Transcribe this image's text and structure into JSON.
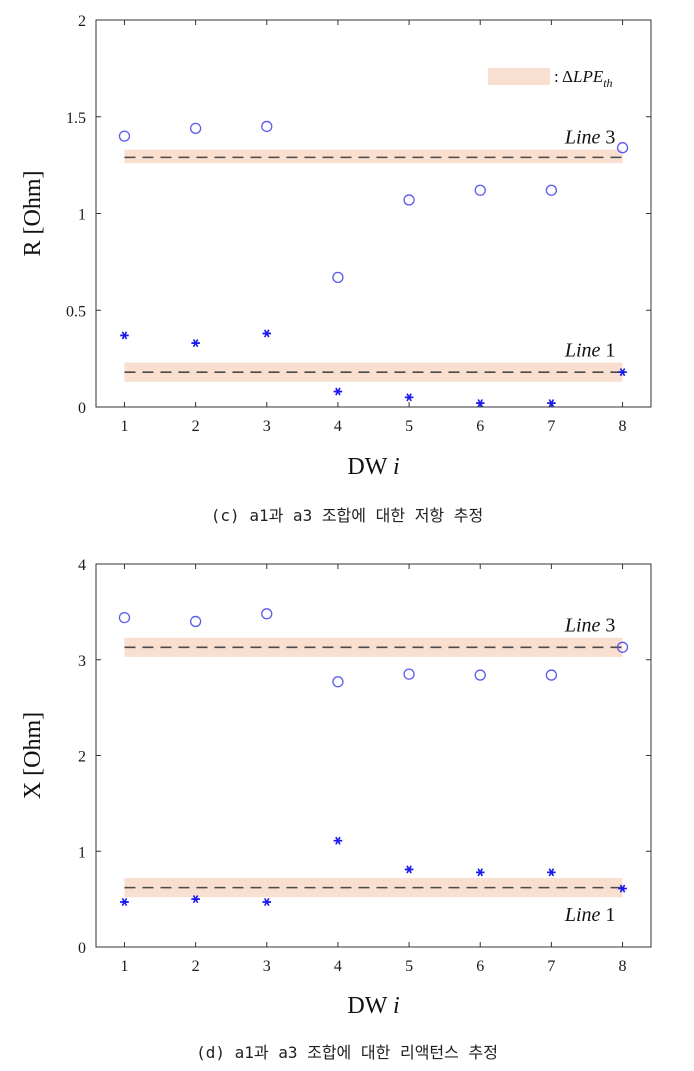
{
  "chart_data": [
    {
      "type": "scatter",
      "caption": "(c) a1과 a3 조합에 대한 저항 추정",
      "xlabel": "DW",
      "xlabel_var": "i",
      "ylabel": "R [Ohm]",
      "xlim": [
        0.6,
        8.4
      ],
      "ylim": [
        0,
        2
      ],
      "x_ticks": [
        "1",
        "2",
        "3",
        "4",
        "5",
        "6",
        "7",
        "8"
      ],
      "y_ticks": [
        "0",
        "0.5",
        "1",
        "1.5",
        "2"
      ],
      "legend": {
        "symbol": "Δ",
        "label": "LPE",
        "subscript": "th",
        "prefix": ":"
      },
      "series": [
        {
          "marker": "circle",
          "color": "#5a5af0",
          "x": [
            1,
            2,
            3,
            4,
            5,
            6,
            7,
            8
          ],
          "y": [
            1.4,
            1.44,
            1.45,
            0.67,
            1.07,
            1.12,
            1.12,
            1.34
          ]
        },
        {
          "marker": "asterisk",
          "color": "#1a1aee",
          "x": [
            1,
            2,
            3,
            4,
            5,
            6,
            7,
            8
          ],
          "y": [
            0.37,
            0.33,
            0.38,
            0.08,
            0.05,
            0.02,
            0.02,
            0.18
          ]
        }
      ],
      "threshold_lines": [
        {
          "name": "Line 3",
          "name_word": "Line",
          "name_num": "3",
          "y": 1.29,
          "band": [
            1.26,
            1.33
          ],
          "label_pos": "above"
        },
        {
          "name": "Line 1",
          "name_word": "Line",
          "name_num": "1",
          "y": 0.18,
          "band": [
            0.13,
            0.23
          ],
          "label_pos": "above"
        }
      ]
    },
    {
      "type": "scatter",
      "caption": "(d) a1과 a3 조합에 대한 리액턴스 추정",
      "xlabel": "DW",
      "xlabel_var": "i",
      "ylabel": "X [Ohm]",
      "xlim": [
        0.6,
        8.4
      ],
      "ylim": [
        0,
        4
      ],
      "x_ticks": [
        "1",
        "2",
        "3",
        "4",
        "5",
        "6",
        "7",
        "8"
      ],
      "y_ticks": [
        "0",
        "1",
        "2",
        "3",
        "4"
      ],
      "series": [
        {
          "marker": "circle",
          "color": "#5a5af0",
          "x": [
            1,
            2,
            3,
            4,
            5,
            6,
            7,
            8
          ],
          "y": [
            3.44,
            3.4,
            3.48,
            2.77,
            2.85,
            2.84,
            2.84,
            3.13
          ]
        },
        {
          "marker": "asterisk",
          "color": "#1a1aee",
          "x": [
            1,
            2,
            3,
            4,
            5,
            6,
            7,
            8
          ],
          "y": [
            0.47,
            0.5,
            0.47,
            1.11,
            0.81,
            0.78,
            0.78,
            0.61
          ]
        }
      ],
      "threshold_lines": [
        {
          "name": "Line 3",
          "name_word": "Line",
          "name_num": "3",
          "y": 3.13,
          "band": [
            3.03,
            3.23
          ],
          "label_pos": "above"
        },
        {
          "name": "Line 1",
          "name_word": "Line",
          "name_num": "1",
          "y": 0.62,
          "band": [
            0.52,
            0.72
          ],
          "label_pos": "below"
        }
      ]
    }
  ],
  "colors": {
    "band": "#f9dfd0",
    "dash": "#4a4a4a",
    "axis": "#333333"
  }
}
